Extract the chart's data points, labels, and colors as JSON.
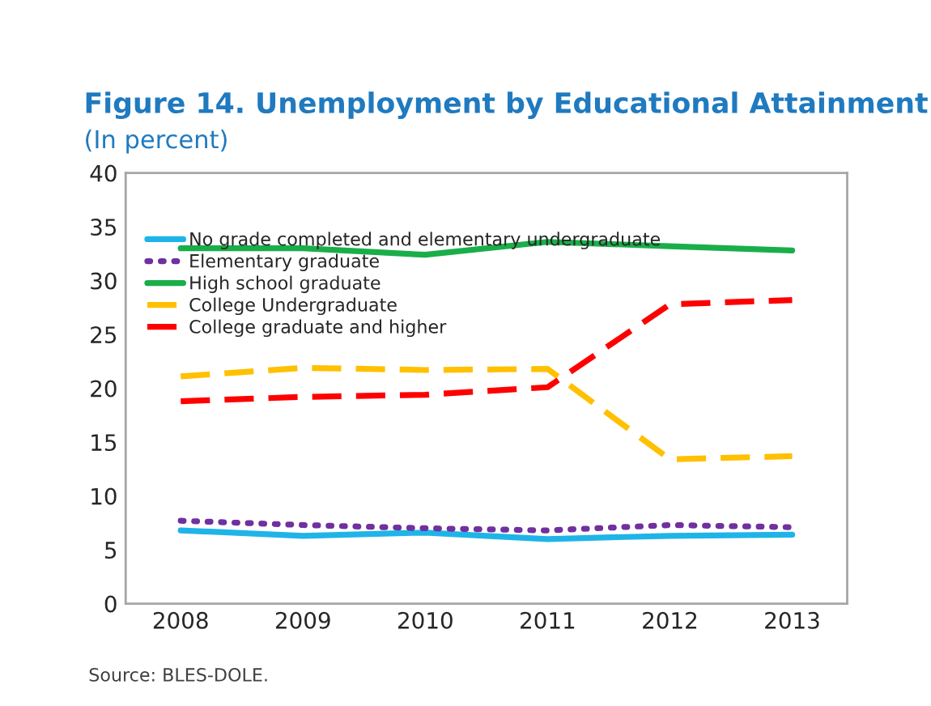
{
  "chart_data": {
    "type": "line",
    "title": "Figure 14. Unemployment by Educational Attainment",
    "subtitle": "(In percent)",
    "categories": [
      "2008",
      "2009",
      "2010",
      "2011",
      "2012",
      "2013"
    ],
    "series": [
      {
        "name": "No grade completed and elementary undergraduate",
        "color": "#1fb4e8",
        "line_style": "solid",
        "values": [
          6.8,
          6.3,
          6.6,
          6.0,
          6.3,
          6.4
        ]
      },
      {
        "name": "Elementary graduate",
        "color": "#7030a0",
        "line_style": "dotted",
        "values": [
          7.7,
          7.3,
          7.0,
          6.8,
          7.3,
          7.1
        ]
      },
      {
        "name": "High school graduate",
        "color": "#1aae4a",
        "line_style": "solid",
        "values": [
          33.0,
          33.0,
          32.4,
          33.6,
          33.2,
          32.8
        ]
      },
      {
        "name": "College Undergraduate",
        "color": "#ffc000",
        "line_style": "dashed",
        "values": [
          21.1,
          21.9,
          21.7,
          21.8,
          13.4,
          13.7
        ]
      },
      {
        "name": "College graduate and higher",
        "color": "#ff0000",
        "line_style": "dashed",
        "values": [
          18.8,
          19.2,
          19.4,
          20.1,
          27.8,
          28.2
        ]
      }
    ],
    "ylim": [
      0,
      40
    ],
    "yticks": [
      0,
      5,
      10,
      15,
      20,
      25,
      30,
      35,
      40
    ],
    "grid": false,
    "legend": "top left",
    "marker": "none",
    "annotations": [
      "Source: BLES-DOLE."
    ]
  }
}
